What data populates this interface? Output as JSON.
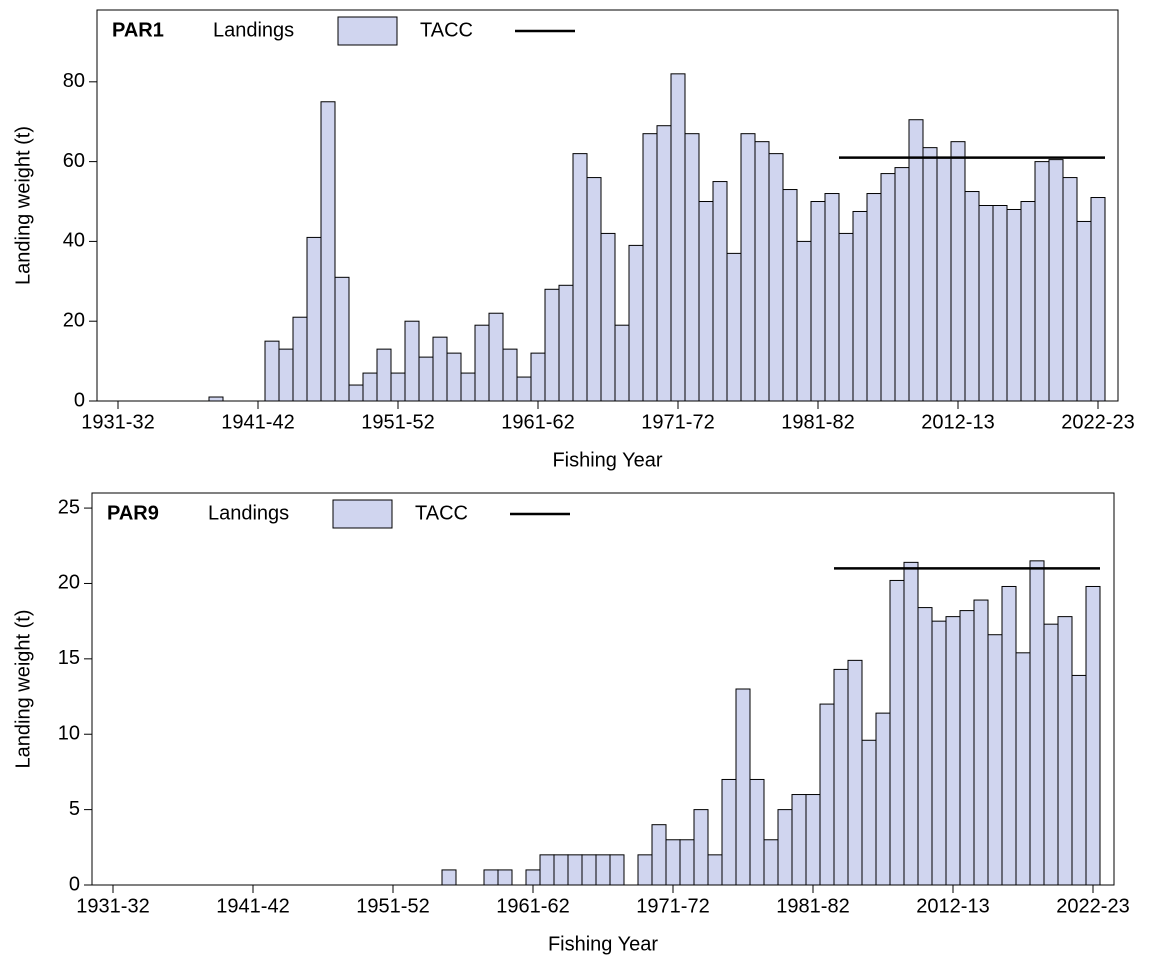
{
  "chart_data": [
    {
      "type": "bar",
      "title": "PAR1",
      "x_label": "Fishing Year",
      "y_label": "Landing weight (t)",
      "categories": [
        "1931-32",
        null,
        null,
        null,
        null,
        null,
        null,
        null,
        null,
        null,
        "1941-42",
        null,
        null,
        null,
        null,
        null,
        null,
        null,
        null,
        null,
        "1951-52",
        null,
        null,
        null,
        null,
        null,
        null,
        null,
        null,
        null,
        "1961-62",
        null,
        null,
        null,
        null,
        null,
        null,
        null,
        null,
        null,
        "1971-72",
        null,
        null,
        null,
        null,
        null,
        null,
        null,
        null,
        null,
        "1981-82",
        null,
        null,
        null,
        null,
        null,
        null,
        null,
        null,
        null,
        "2012-13",
        null,
        null,
        null,
        null,
        null,
        null,
        null,
        null,
        null,
        "2022-23"
      ],
      "series": [
        {
          "name": "Landings",
          "color": "#d0d5ef",
          "values": [
            null,
            null,
            null,
            null,
            null,
            null,
            null,
            1,
            null,
            null,
            null,
            15,
            13,
            21,
            41,
            75,
            31,
            4,
            7,
            13,
            7,
            20,
            11,
            16,
            12,
            7,
            19,
            22,
            13,
            6,
            12,
            28,
            29,
            62,
            56,
            42,
            19,
            39,
            67,
            69,
            82,
            67,
            50,
            55,
            37,
            67,
            65,
            62,
            53,
            40,
            50,
            52,
            42,
            47.5,
            52,
            57,
            58.5,
            70.5,
            63.5,
            61,
            65,
            52.5,
            49,
            49,
            48,
            50,
            60,
            60.5,
            56,
            45,
            51
          ]
        },
        {
          "name": "TACC",
          "color": "#000000",
          "values": [
            null,
            null,
            null,
            null,
            null,
            null,
            null,
            null,
            null,
            null,
            null,
            null,
            null,
            null,
            null,
            null,
            null,
            null,
            null,
            null,
            null,
            null,
            null,
            null,
            null,
            null,
            null,
            null,
            null,
            null,
            null,
            null,
            null,
            null,
            null,
            null,
            null,
            null,
            null,
            null,
            null,
            null,
            null,
            null,
            null,
            null,
            null,
            null,
            null,
            null,
            null,
            null,
            61,
            61,
            61,
            61,
            61,
            61,
            61,
            61,
            61,
            61,
            61,
            61,
            61,
            61,
            61,
            61,
            61,
            61,
            61
          ]
        }
      ],
      "ylim": [
        0,
        98
      ],
      "yticks": [
        0,
        20,
        40,
        60,
        80
      ]
    },
    {
      "type": "bar",
      "title": "PAR9",
      "x_label": "Fishing Year",
      "y_label": "Landing weight (t)",
      "categories": [
        "1931-32",
        null,
        null,
        null,
        null,
        null,
        null,
        null,
        null,
        null,
        "1941-42",
        null,
        null,
        null,
        null,
        null,
        null,
        null,
        null,
        null,
        "1951-52",
        null,
        null,
        null,
        null,
        null,
        null,
        null,
        null,
        null,
        "1961-62",
        null,
        null,
        null,
        null,
        null,
        null,
        null,
        null,
        null,
        "1971-72",
        null,
        null,
        null,
        null,
        null,
        null,
        null,
        null,
        null,
        "1981-82",
        null,
        null,
        null,
        null,
        null,
        null,
        null,
        null,
        null,
        "2012-13",
        null,
        null,
        null,
        null,
        null,
        null,
        null,
        null,
        null,
        "2022-23"
      ],
      "series": [
        {
          "name": "Landings",
          "color": "#d0d5ef",
          "values": [
            null,
            null,
            null,
            null,
            null,
            null,
            null,
            null,
            null,
            null,
            null,
            null,
            null,
            null,
            null,
            null,
            null,
            null,
            null,
            null,
            null,
            null,
            null,
            null,
            1,
            null,
            null,
            1,
            1,
            null,
            1,
            2,
            2,
            2,
            2,
            2,
            2,
            null,
            2,
            4,
            3,
            3,
            5,
            2,
            7,
            13,
            7,
            3,
            5,
            6,
            6,
            12,
            14.3,
            14.9,
            9.6,
            11.4,
            20.2,
            21.4,
            18.4,
            17.5,
            17.8,
            18.2,
            18.9,
            16.6,
            19.8,
            15.4,
            21.5,
            17.3,
            17.8,
            13.9,
            19.8
          ]
        },
        {
          "name": "TACC",
          "color": "#000000",
          "values": [
            null,
            null,
            null,
            null,
            null,
            null,
            null,
            null,
            null,
            null,
            null,
            null,
            null,
            null,
            null,
            null,
            null,
            null,
            null,
            null,
            null,
            null,
            null,
            null,
            null,
            null,
            null,
            null,
            null,
            null,
            null,
            null,
            null,
            null,
            null,
            null,
            null,
            null,
            null,
            null,
            null,
            null,
            null,
            null,
            null,
            null,
            null,
            null,
            null,
            null,
            null,
            null,
            21,
            21,
            21,
            21,
            21,
            21,
            21,
            21,
            21,
            21,
            21,
            21,
            21,
            21,
            21,
            21,
            21,
            21,
            21
          ]
        }
      ],
      "ylim": [
        0,
        26
      ],
      "yticks": [
        0,
        5,
        10,
        15,
        20,
        25
      ]
    }
  ]
}
